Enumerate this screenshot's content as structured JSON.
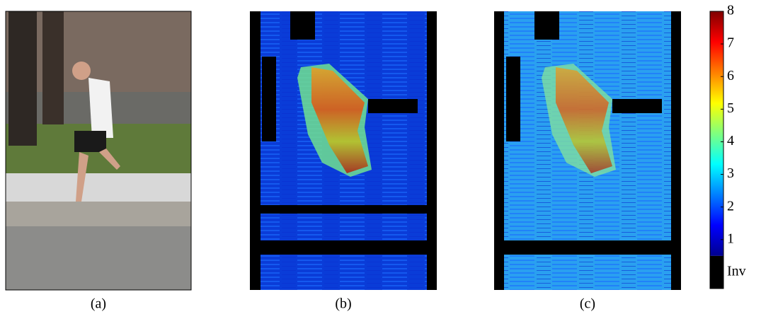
{
  "panels": [
    {
      "label": "(a)"
    },
    {
      "label": "(b)"
    },
    {
      "label": "(c)"
    }
  ],
  "colorbar": {
    "lim": [
      0,
      8
    ],
    "ticks": [
      {
        "value": 0,
        "label": "Inv"
      },
      1,
      2,
      3,
      4,
      5,
      6,
      7,
      8
    ]
  }
}
